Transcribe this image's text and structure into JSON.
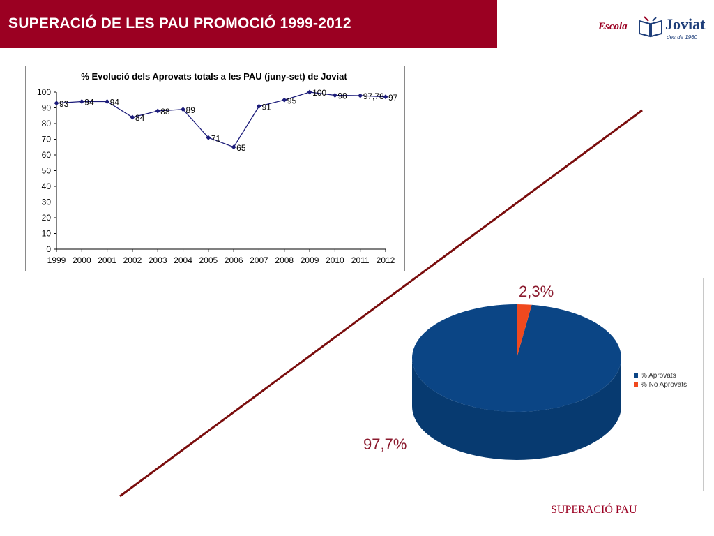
{
  "header": {
    "title": "SUPERACIÓ DE LES PAU PROMOCIÓ 1999-2012"
  },
  "logo": {
    "escola": "Escola",
    "brand": "Joviat",
    "since": "des de 1960"
  },
  "chart_data": [
    {
      "type": "line",
      "title": "% Evolució dels Aprovats totals a les PAU (juny-set) de Joviat",
      "xlabel": "",
      "ylabel": "",
      "x": [
        "1999",
        "2000",
        "2001",
        "2002",
        "2003",
        "2004",
        "2005",
        "2006",
        "2007",
        "2008",
        "2009",
        "2010",
        "2011",
        "2012"
      ],
      "values": [
        93,
        94,
        94,
        84,
        88,
        89,
        71,
        65,
        91,
        95,
        100,
        98,
        97.78,
        97
      ],
      "data_labels": [
        "93",
        "94",
        "94",
        "84",
        "88",
        "89",
        "71",
        "65",
        "91",
        "95",
        "100",
        "98",
        "97,78",
        "97"
      ],
      "ylim": [
        0,
        100
      ],
      "yticks": [
        0,
        10,
        20,
        30,
        40,
        50,
        60,
        70,
        80,
        90,
        100
      ],
      "grid": false,
      "color": "#1c1c7a"
    },
    {
      "type": "pie",
      "categories": [
        "% Aprovats",
        "% No Aprovats"
      ],
      "values": [
        97.7,
        2.3
      ],
      "labels": [
        "97,7%",
        "2,3%"
      ],
      "colors": [
        "#0b4585",
        "#f0491e"
      ],
      "legend": "right",
      "style": "3d"
    }
  ],
  "footer": {
    "text": "SUPERACIÓ PAU"
  },
  "colors": {
    "brand": "#9b0022",
    "diagonal_line": "#7a0d0d"
  }
}
